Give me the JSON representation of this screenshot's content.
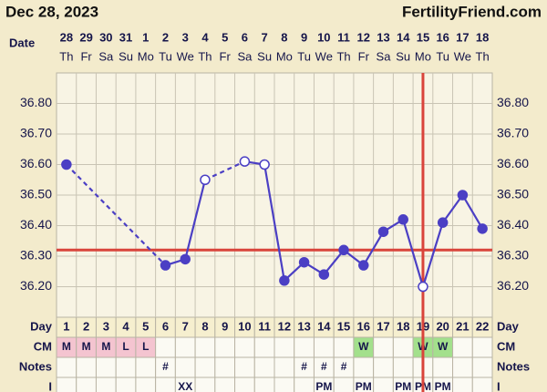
{
  "header": {
    "date": "Dec 28, 2023",
    "site": "FertilityFriend.com"
  },
  "chart_data": {
    "type": "line",
    "date_label": "Date",
    "categories": [
      "28",
      "29",
      "30",
      "31",
      "1",
      "2",
      "3",
      "4",
      "5",
      "6",
      "7",
      "8",
      "9",
      "10",
      "11",
      "12",
      "13",
      "14",
      "15",
      "16",
      "17",
      "18"
    ],
    "weekdays": [
      "Th",
      "Fr",
      "Sa",
      "Su",
      "Mo",
      "Tu",
      "We",
      "Th",
      "Fr",
      "Sa",
      "Su",
      "Mo",
      "Tu",
      "We",
      "Th",
      "Fr",
      "Sa",
      "Su",
      "Mo",
      "Tu",
      "We",
      "Th"
    ],
    "series": [
      {
        "color": "#4b3fc4",
        "values": [
          36.6,
          null,
          null,
          null,
          null,
          36.27,
          36.29,
          36.55,
          null,
          36.61,
          36.6,
          36.22,
          36.28,
          36.24,
          36.32,
          36.27,
          36.38,
          36.42,
          36.2,
          36.41,
          36.5,
          36.39
        ],
        "open_markers": [
          false,
          false,
          false,
          false,
          false,
          false,
          false,
          true,
          false,
          true,
          true,
          false,
          false,
          false,
          false,
          false,
          false,
          false,
          true,
          false,
          false,
          false
        ]
      }
    ],
    "ylim": [
      36.1,
      36.9
    ],
    "yticks": [
      {
        "value": 36.2,
        "label": "36.20"
      },
      {
        "value": 36.3,
        "label": "36.30"
      },
      {
        "value": 36.4,
        "label": "36.40"
      },
      {
        "value": 36.5,
        "label": "36.50"
      },
      {
        "value": 36.6,
        "label": "36.60"
      },
      {
        "value": 36.7,
        "label": "36.70"
      },
      {
        "value": 36.8,
        "label": "36.80"
      }
    ],
    "grid": true,
    "coverline": {
      "value": 36.32,
      "color": "#d9443b"
    },
    "ovulation_day": 19,
    "ovulation_color": "#d9443b"
  },
  "table": {
    "rows": [
      {
        "label": "Day",
        "cells": [
          1,
          2,
          3,
          4,
          5,
          6,
          7,
          8,
          9,
          10,
          11,
          12,
          13,
          14,
          15,
          16,
          17,
          18,
          19,
          20,
          21,
          22
        ]
      },
      {
        "label": "CM",
        "cells": [
          "M",
          "M",
          "M",
          "L",
          "L",
          null,
          null,
          null,
          null,
          null,
          null,
          null,
          null,
          null,
          null,
          "W",
          null,
          null,
          "W",
          "W",
          null,
          null
        ],
        "colors": {
          "M": "#f4c4d0",
          "L": "#f4c4d0",
          "W": "#a3e08c"
        }
      },
      {
        "label": "Notes",
        "cells": [
          null,
          null,
          null,
          null,
          null,
          "#",
          null,
          null,
          null,
          null,
          null,
          null,
          "#",
          "#",
          "#",
          null,
          null,
          null,
          null,
          null,
          null,
          null
        ]
      },
      {
        "label": "I",
        "cells": [
          null,
          null,
          null,
          null,
          null,
          null,
          "XX",
          null,
          null,
          null,
          null,
          null,
          null,
          "PM",
          null,
          "PM",
          null,
          "PM",
          "PM",
          "PM",
          null,
          null
        ]
      }
    ]
  }
}
